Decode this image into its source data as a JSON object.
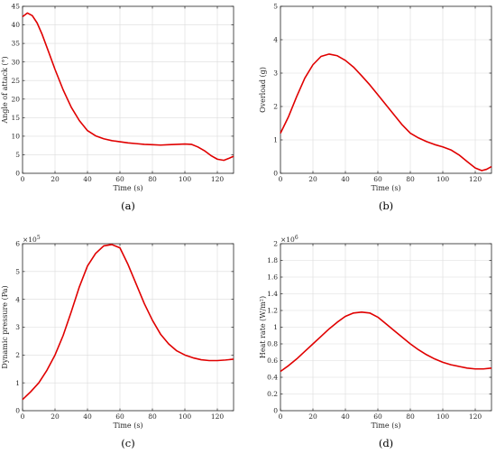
{
  "chart_data": [
    {
      "type": "line",
      "caption": "(a)",
      "xlabel": "Time (s)",
      "ylabel": "Angle of attack (°)",
      "xlim": [
        0,
        130
      ],
      "ylim": [
        0,
        45
      ],
      "xticks": [
        "0",
        "20",
        "40",
        "60",
        "80",
        "100",
        "120"
      ],
      "yticks": [
        "0",
        "5",
        "10",
        "15",
        "20",
        "25",
        "30",
        "35",
        "40",
        "45"
      ],
      "multiplier": "",
      "grid": true,
      "color": "#e00000",
      "series": [
        {
          "x": [
            0,
            3,
            6,
            9,
            12,
            16,
            20,
            25,
            30,
            35,
            40,
            45,
            50,
            55,
            60,
            65,
            70,
            75,
            80,
            85,
            90,
            95,
            100,
            104,
            108,
            112,
            116,
            120,
            124,
            127,
            130
          ],
          "y": [
            42.2,
            43.2,
            42.5,
            40.5,
            37.5,
            32.8,
            28,
            22.5,
            17.8,
            14.2,
            11.5,
            10.1,
            9.3,
            8.8,
            8.5,
            8.2,
            8.0,
            7.8,
            7.7,
            7.6,
            7.7,
            7.8,
            7.9,
            7.8,
            7.1,
            6.1,
            4.8,
            3.8,
            3.5,
            4.0,
            4.6
          ]
        }
      ]
    },
    {
      "type": "line",
      "caption": "(b)",
      "xlabel": "Time (s)",
      "ylabel": "Overload (g)",
      "xlim": [
        0,
        130
      ],
      "ylim": [
        0,
        5
      ],
      "xticks": [
        "0",
        "20",
        "40",
        "60",
        "80",
        "100",
        "120"
      ],
      "yticks": [
        "0",
        "1",
        "2",
        "3",
        "4",
        "5"
      ],
      "multiplier": "",
      "grid": true,
      "color": "#e00000",
      "series": [
        {
          "x": [
            0,
            5,
            10,
            15,
            20,
            25,
            30,
            35,
            40,
            45,
            50,
            55,
            60,
            65,
            70,
            75,
            80,
            85,
            90,
            95,
            100,
            105,
            110,
            115,
            120,
            124,
            127,
            130
          ],
          "y": [
            1.2,
            1.7,
            2.3,
            2.85,
            3.25,
            3.5,
            3.57,
            3.52,
            3.38,
            3.18,
            2.92,
            2.65,
            2.35,
            2.05,
            1.75,
            1.45,
            1.2,
            1.06,
            0.95,
            0.86,
            0.79,
            0.7,
            0.55,
            0.35,
            0.16,
            0.08,
            0.12,
            0.2
          ]
        }
      ]
    },
    {
      "type": "line",
      "caption": "(c)",
      "xlabel": "Time (s)",
      "ylabel": "Dynamic pressure (Pa)",
      "xlim": [
        0,
        130
      ],
      "ylim": [
        0,
        6
      ],
      "xticks": [
        "0",
        "20",
        "40",
        "60",
        "80",
        "100",
        "120"
      ],
      "yticks": [
        "0",
        "1",
        "2",
        "3",
        "4",
        "5",
        "6"
      ],
      "multiplier": "×10",
      "multiplier_exp": "5",
      "grid": true,
      "color": "#e00000",
      "series": [
        {
          "x": [
            0,
            5,
            10,
            15,
            20,
            25,
            30,
            35,
            40,
            45,
            50,
            55,
            60,
            65,
            70,
            75,
            80,
            85,
            90,
            95,
            100,
            105,
            110,
            115,
            120,
            125,
            130
          ],
          "y": [
            0.4,
            0.68,
            1.0,
            1.45,
            2.0,
            2.7,
            3.55,
            4.45,
            5.2,
            5.65,
            5.92,
            5.97,
            5.85,
            5.25,
            4.55,
            3.85,
            3.25,
            2.75,
            2.4,
            2.15,
            2.0,
            1.9,
            1.83,
            1.8,
            1.8,
            1.82,
            1.85
          ]
        }
      ]
    },
    {
      "type": "line",
      "caption": "(d)",
      "xlabel": "Time (s)",
      "ylabel": "Heat rate (W/m²)",
      "xlim": [
        0,
        130
      ],
      "ylim": [
        0,
        2
      ],
      "xticks": [
        "0",
        "20",
        "40",
        "60",
        "80",
        "100",
        "120"
      ],
      "yticks": [
        "0",
        "0.2",
        "0.4",
        "0.6",
        "0.8",
        "1",
        "1.2",
        "1.4",
        "1.6",
        "1.8",
        "2"
      ],
      "multiplier": "×10",
      "multiplier_exp": "6",
      "grid": true,
      "color": "#e00000",
      "series": [
        {
          "x": [
            0,
            5,
            10,
            15,
            20,
            25,
            30,
            35,
            40,
            45,
            50,
            55,
            60,
            65,
            70,
            75,
            80,
            85,
            90,
            95,
            100,
            105,
            110,
            115,
            120,
            125,
            130
          ],
          "y": [
            0.47,
            0.54,
            0.62,
            0.71,
            0.8,
            0.89,
            0.98,
            1.06,
            1.13,
            1.17,
            1.18,
            1.17,
            1.12,
            1.04,
            0.96,
            0.88,
            0.8,
            0.73,
            0.67,
            0.62,
            0.58,
            0.55,
            0.53,
            0.51,
            0.5,
            0.5,
            0.51
          ]
        }
      ]
    }
  ]
}
